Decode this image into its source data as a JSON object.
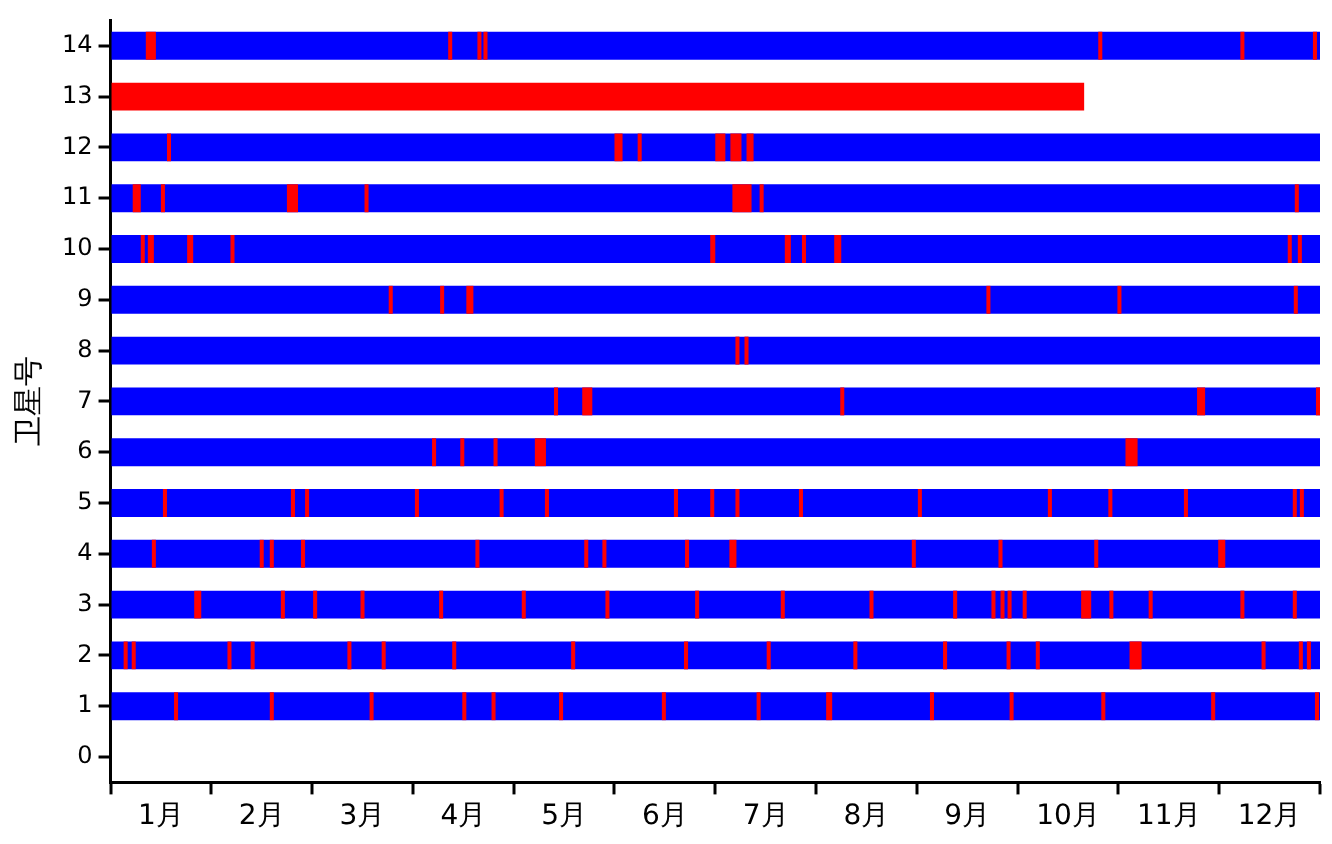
{
  "chart_data": {
    "type": "bar",
    "orientation": "horizontal",
    "ylabel": "卫星号",
    "legend": false,
    "grid": false,
    "categories": [
      "14",
      "13",
      "12",
      "11",
      "10",
      "9",
      "8",
      "7",
      "6",
      "5",
      "4",
      "3",
      "2",
      "1",
      "0"
    ],
    "xlim": [
      0,
      12
    ],
    "xticks": [
      {
        "value": 0,
        "label": null
      },
      {
        "value": 0.5,
        "label": "1月"
      },
      {
        "value": 1,
        "label": null
      },
      {
        "value": 1.5,
        "label": "2月"
      },
      {
        "value": 2,
        "label": null
      },
      {
        "value": 2.5,
        "label": "3月"
      },
      {
        "value": 3,
        "label": null
      },
      {
        "value": 3.5,
        "label": "4月"
      },
      {
        "value": 4,
        "label": null
      },
      {
        "value": 4.5,
        "label": "5月"
      },
      {
        "value": 5,
        "label": null
      },
      {
        "value": 5.5,
        "label": "6月"
      },
      {
        "value": 6,
        "label": null
      },
      {
        "value": 6.5,
        "label": "7月"
      },
      {
        "value": 7,
        "label": null
      },
      {
        "value": 7.5,
        "label": "8月"
      },
      {
        "value": 8,
        "label": null
      },
      {
        "value": 8.5,
        "label": "9月"
      },
      {
        "value": 9,
        "label": null
      },
      {
        "value": 9.5,
        "label": "10月"
      },
      {
        "value": 10,
        "label": null
      },
      {
        "value": 10.5,
        "label": "11月"
      },
      {
        "value": 11,
        "label": null
      },
      {
        "value": 11.5,
        "label": "12月"
      },
      {
        "value": 12,
        "label": null
      }
    ],
    "series": [
      {
        "color": "#0000ff",
        "base": [
          0,
          null,
          0,
          0,
          0,
          0,
          0,
          0,
          0,
          0,
          0,
          0,
          0,
          0,
          null
        ],
        "values": [
          12,
          null,
          12,
          12,
          12,
          12,
          12,
          12,
          12,
          12,
          12,
          12,
          12,
          12,
          null
        ]
      },
      {
        "color": "#ff0000",
        "base": [
          0.35,
          0,
          0.56,
          0.22,
          0.3,
          2.76,
          6.2,
          4.4,
          3.19,
          0.52,
          0.41,
          0.83,
          0.13,
          0.63,
          null
        ],
        "values": [
          0.1,
          9.66,
          0.04,
          0.08,
          0.04,
          0.04,
          0.04,
          0.04,
          0.04,
          0.04,
          0.04,
          0.07,
          0.04,
          0.04,
          null
        ]
      },
      {
        "color": "#ff0000",
        "base": [
          3.35,
          null,
          5.0,
          0.5,
          0.37,
          3.27,
          6.29,
          4.68,
          3.47,
          1.79,
          1.48,
          1.69,
          0.21,
          1.58,
          null
        ],
        "values": [
          0.04,
          null,
          0.08,
          0.04,
          0.06,
          0.04,
          0.04,
          0.1,
          0.04,
          0.04,
          0.04,
          0.04,
          0.04,
          0.04,
          null
        ]
      },
      {
        "color": "#ff0000",
        "base": [
          3.64,
          null,
          5.23,
          1.75,
          0.76,
          3.53,
          null,
          7.24,
          3.8,
          1.93,
          1.58,
          2.01,
          1.16,
          2.57,
          null
        ],
        "values": [
          0.04,
          null,
          0.04,
          0.11,
          0.06,
          0.07,
          null,
          0.04,
          0.04,
          0.04,
          0.04,
          0.04,
          0.04,
          0.04,
          null
        ]
      },
      {
        "color": "#ff0000",
        "base": [
          3.7,
          null,
          6.0,
          2.52,
          1.19,
          8.69,
          null,
          10.78,
          4.21,
          3.02,
          1.89,
          2.48,
          1.39,
          3.49,
          null
        ],
        "values": [
          0.04,
          null,
          0.1,
          0.04,
          0.04,
          0.04,
          null,
          0.08,
          0.11,
          0.04,
          0.04,
          0.04,
          0.04,
          0.04,
          null
        ]
      },
      {
        "color": "#ff0000",
        "base": [
          9.8,
          null,
          6.15,
          6.17,
          5.95,
          9.99,
          null,
          11.96,
          10.07,
          3.86,
          3.62,
          3.26,
          2.35,
          3.78,
          null
        ],
        "values": [
          0.04,
          null,
          0.11,
          0.19,
          0.05,
          0.04,
          null,
          0.04,
          0.12,
          0.04,
          0.04,
          0.04,
          0.04,
          0.04,
          null
        ]
      },
      {
        "color": "#ff0000",
        "base": [
          11.21,
          null,
          6.31,
          6.44,
          6.69,
          11.74,
          null,
          null,
          null,
          4.31,
          4.7,
          4.08,
          2.69,
          4.45,
          null
        ],
        "values": [
          0.04,
          null,
          0.07,
          0.04,
          0.06,
          0.04,
          null,
          null,
          null,
          0.04,
          0.04,
          0.04,
          0.04,
          0.04,
          null
        ]
      },
      {
        "color": "#ff0000",
        "base": [
          11.93,
          null,
          null,
          11.75,
          6.86,
          null,
          null,
          null,
          null,
          5.59,
          4.88,
          4.91,
          3.39,
          5.47,
          null
        ],
        "values": [
          0.04,
          null,
          null,
          0.04,
          0.04,
          null,
          null,
          null,
          null,
          0.04,
          0.04,
          0.04,
          0.04,
          0.04,
          null
        ]
      },
      {
        "color": "#ff0000",
        "base": [
          null,
          null,
          null,
          null,
          7.18,
          null,
          null,
          null,
          null,
          5.95,
          5.7,
          5.8,
          4.57,
          6.41,
          null
        ],
        "values": [
          null,
          null,
          null,
          null,
          0.07,
          null,
          null,
          null,
          null,
          0.04,
          0.04,
          0.04,
          0.04,
          0.04,
          null
        ]
      },
      {
        "color": "#ff0000",
        "base": [
          null,
          null,
          null,
          null,
          11.68,
          null,
          null,
          null,
          null,
          6.2,
          6.14,
          6.65,
          5.69,
          7.1,
          null
        ],
        "values": [
          null,
          null,
          null,
          null,
          0.04,
          null,
          null,
          null,
          null,
          0.04,
          0.07,
          0.04,
          0.04,
          0.06,
          null
        ]
      },
      {
        "color": "#ff0000",
        "base": [
          null,
          null,
          null,
          null,
          11.78,
          null,
          null,
          null,
          null,
          6.83,
          7.95,
          7.53,
          6.51,
          8.13,
          null
        ],
        "values": [
          null,
          null,
          null,
          null,
          0.04,
          null,
          null,
          null,
          null,
          0.04,
          0.04,
          0.04,
          0.04,
          0.04,
          null
        ]
      },
      {
        "color": "#ff0000",
        "base": [
          null,
          null,
          null,
          null,
          null,
          null,
          null,
          null,
          null,
          8.01,
          8.81,
          8.36,
          7.37,
          8.92,
          null
        ],
        "values": [
          null,
          null,
          null,
          null,
          null,
          null,
          null,
          null,
          null,
          0.04,
          0.04,
          0.04,
          0.04,
          0.04,
          null
        ]
      },
      {
        "color": "#ff0000",
        "base": [
          null,
          null,
          null,
          null,
          null,
          null,
          null,
          null,
          null,
          9.3,
          9.76,
          8.74,
          8.26,
          9.83,
          null
        ],
        "values": [
          null,
          null,
          null,
          null,
          null,
          null,
          null,
          null,
          null,
          0.04,
          0.04,
          0.04,
          0.04,
          0.04,
          null
        ]
      },
      {
        "color": "#ff0000",
        "base": [
          null,
          null,
          null,
          null,
          null,
          null,
          null,
          null,
          null,
          9.9,
          10.99,
          8.83,
          8.89,
          10.92,
          null
        ],
        "values": [
          null,
          null,
          null,
          null,
          null,
          null,
          null,
          null,
          null,
          0.04,
          0.07,
          0.04,
          0.04,
          0.04,
          null
        ]
      },
      {
        "color": "#ff0000",
        "base": [
          null,
          null,
          null,
          null,
          null,
          null,
          null,
          null,
          null,
          10.65,
          null,
          8.9,
          9.18,
          11.95,
          null
        ],
        "values": [
          null,
          null,
          null,
          null,
          null,
          null,
          null,
          null,
          null,
          0.04,
          null,
          0.04,
          0.04,
          0.04,
          null
        ]
      },
      {
        "color": "#ff0000",
        "base": [
          null,
          null,
          null,
          null,
          null,
          null,
          null,
          null,
          null,
          11.73,
          null,
          9.05,
          10.11,
          null,
          null
        ],
        "values": [
          null,
          null,
          null,
          null,
          null,
          null,
          null,
          null,
          null,
          0.04,
          null,
          0.04,
          0.12,
          null,
          null
        ]
      },
      {
        "color": "#ff0000",
        "base": [
          null,
          null,
          null,
          null,
          null,
          null,
          null,
          null,
          null,
          11.8,
          null,
          9.63,
          11.42,
          null,
          null
        ],
        "values": [
          null,
          null,
          null,
          null,
          null,
          null,
          null,
          null,
          null,
          0.04,
          null,
          0.1,
          0.04,
          null,
          null
        ]
      },
      {
        "color": "#ff0000",
        "base": [
          null,
          null,
          null,
          null,
          null,
          null,
          null,
          null,
          null,
          null,
          null,
          9.91,
          11.79,
          null,
          null
        ],
        "values": [
          null,
          null,
          null,
          null,
          null,
          null,
          null,
          null,
          null,
          null,
          null,
          0.04,
          0.04,
          null,
          null
        ]
      },
      {
        "color": "#ff0000",
        "base": [
          null,
          null,
          null,
          null,
          null,
          null,
          null,
          null,
          null,
          null,
          null,
          10.3,
          11.87,
          null,
          null
        ],
        "values": [
          null,
          null,
          null,
          null,
          null,
          null,
          null,
          null,
          null,
          null,
          null,
          0.04,
          0.04,
          null,
          null
        ]
      },
      {
        "color": "#ff0000",
        "base": [
          null,
          null,
          null,
          null,
          null,
          null,
          null,
          null,
          null,
          null,
          null,
          11.21,
          null,
          null,
          null
        ],
        "values": [
          null,
          null,
          null,
          null,
          null,
          null,
          null,
          null,
          null,
          null,
          null,
          0.04,
          null,
          null,
          null
        ]
      },
      {
        "color": "#ff0000",
        "base": [
          null,
          null,
          null,
          null,
          null,
          null,
          null,
          null,
          null,
          null,
          null,
          11.73,
          null,
          null,
          null
        ],
        "values": [
          null,
          null,
          null,
          null,
          null,
          null,
          null,
          null,
          null,
          null,
          null,
          0.04,
          null,
          null,
          null
        ]
      }
    ]
  }
}
